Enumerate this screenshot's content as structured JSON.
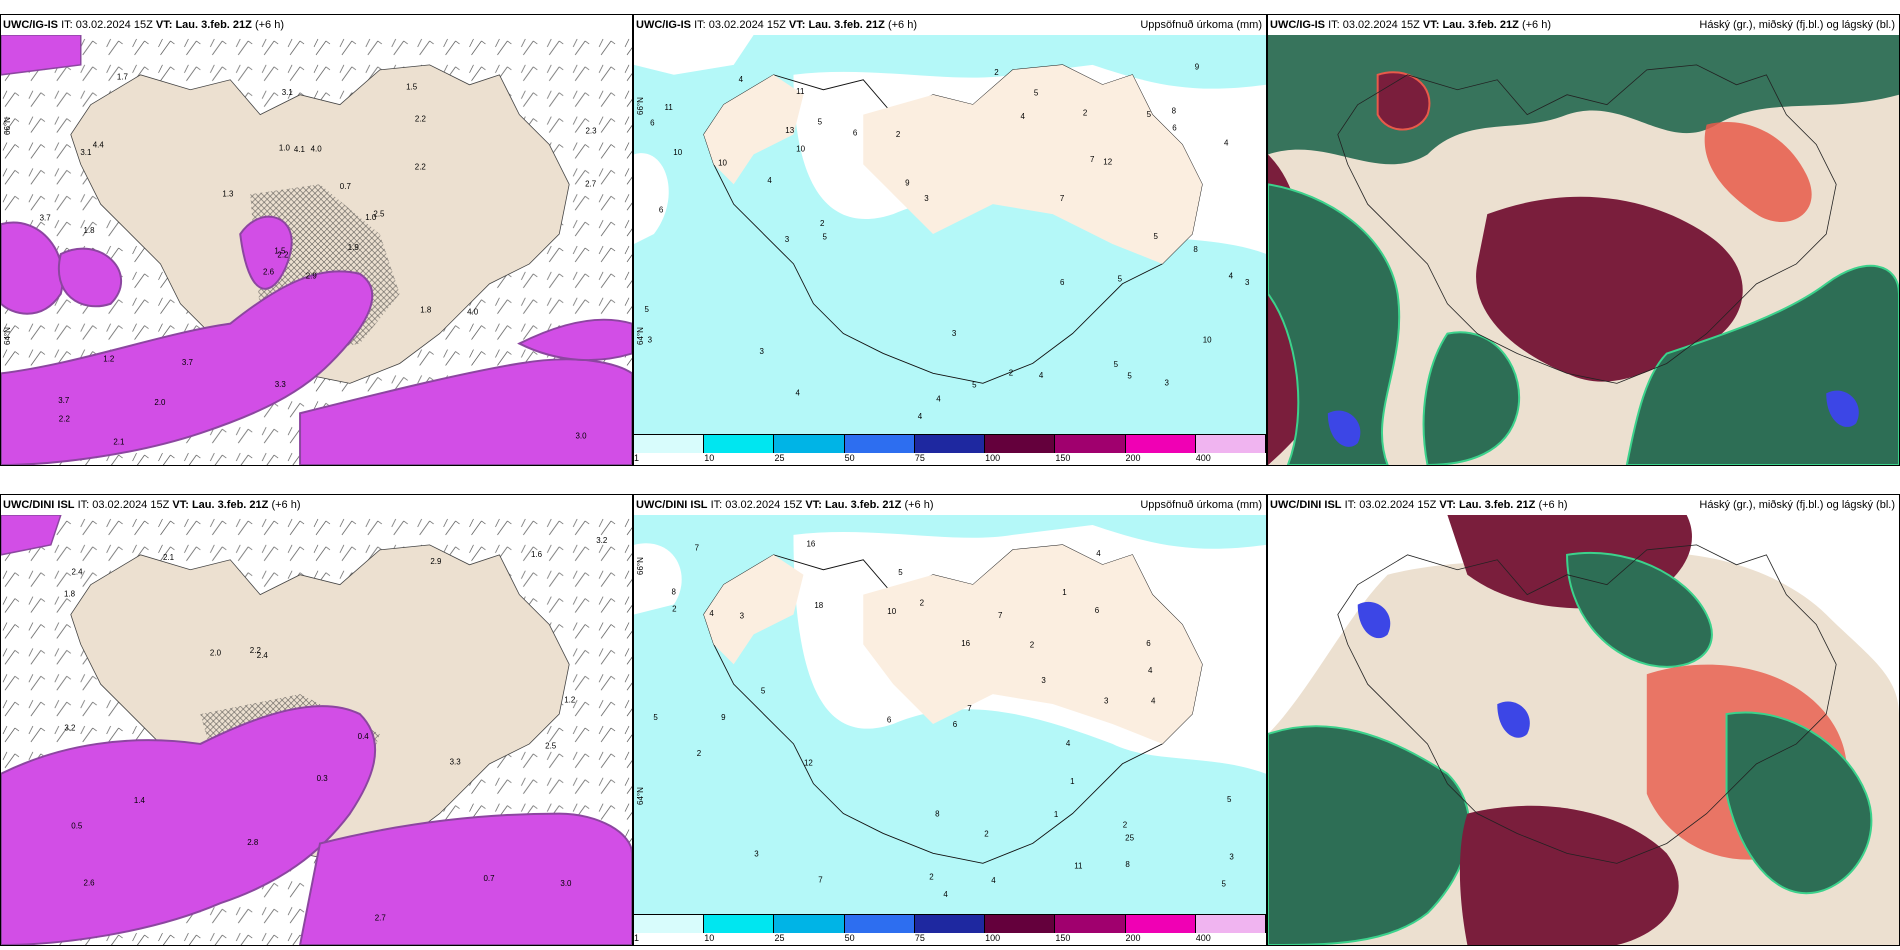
{
  "rows": [
    {
      "model": "UWC/IG-IS",
      "it_label": "IT:",
      "it_value": "03.02.2024 15Z",
      "vt_label": "VT:",
      "vt_value": "Lau. 3.feb. 21Z",
      "lead": "(+6 h)"
    },
    {
      "model": "UWC/DINI ISL",
      "it_label": "IT:",
      "it_value": "03.02.2024 15Z",
      "vt_label": "VT:",
      "vt_value": "Lau. 3.feb. 21Z",
      "lead": "(+6 h)"
    }
  ],
  "precip_title": "Uppsöfnuð úrkoma (mm)",
  "cloud_title": "Háský (gr.), miðský (fj.bl.) og lágský (bl.)",
  "lat_label_top": "66°N",
  "lat_label_bottom": "64°N",
  "colorbar": {
    "ticks": [
      "1",
      "10",
      "25",
      "50",
      "75",
      "100",
      "150",
      "200",
      "400"
    ],
    "colors": [
      "#d8fcfc",
      "#00e6f0",
      "#00b4e6",
      "#2d6ef0",
      "#1e28a0",
      "#64003c",
      "#a0006e",
      "#f000b4",
      "#f0b4f0"
    ]
  },
  "map_colors": {
    "land": "#ece0d0",
    "precip_light": "#b4f8f8",
    "rain_purple": "#d24ee6",
    "rain_dark": "#8c46a0",
    "cloud_green": "#2d6e55",
    "cloud_maroon": "#7a1e3c",
    "cloud_red": "#e85a4a",
    "cloud_blue": "#3c46e6"
  },
  "panel1_labels": {
    "top": [
      "2.9",
      "3.1",
      "2.2",
      "3.7",
      "1.0",
      "3.7",
      "1.5",
      "4.0",
      "2.2",
      "1.9",
      "1.7",
      "3.0",
      "1.8",
      "2.3",
      "2.6",
      "2.2",
      "2.1",
      "1.0",
      "0.7",
      "1.2",
      "1.3",
      "2.2",
      "2.0",
      "4.1",
      "2.5",
      "4.0",
      "4.4",
      "3.1",
      "3.7",
      "1.8",
      "2.7",
      "1.5",
      "3.3"
    ],
    "bottom": [
      "3.3",
      "2.5",
      "2.6",
      "2.1",
      "2.4",
      "0.7",
      "0.5",
      "2.9",
      "2.0",
      "2.7",
      "1.8",
      "3.2",
      "2.4",
      "3.0",
      "2.8",
      "1.2",
      "0.3",
      "0.4",
      "2.2",
      "1.4",
      "3.2",
      "1.6"
    ]
  },
  "panel2_labels": {
    "top": [
      "10",
      "10",
      "7",
      "4",
      "5",
      "4",
      "6",
      "5",
      "8",
      "3",
      "4",
      "5",
      "7",
      "3",
      "6",
      "4",
      "2",
      "2",
      "3",
      "2",
      "5",
      "8",
      "3",
      "3",
      "2",
      "4",
      "6",
      "5",
      "4",
      "3",
      "5",
      "4",
      "9",
      "10",
      "11",
      "11",
      "6",
      "4",
      "2",
      "3",
      "12",
      "13",
      "9",
      "5",
      "5",
      "4",
      "6",
      "5",
      "10",
      "5"
    ],
    "bottom": [
      "16",
      "25",
      "8",
      "6",
      "2",
      "2",
      "4",
      "1",
      "5",
      "2",
      "2",
      "7",
      "4",
      "4",
      "3",
      "6",
      "5",
      "1",
      "2",
      "1",
      "2",
      "8",
      "3",
      "6",
      "4",
      "3",
      "7",
      "5",
      "7",
      "5",
      "3",
      "9",
      "4",
      "4",
      "12",
      "10",
      "16",
      "18",
      "11",
      "8",
      "6",
      "5",
      "3",
      "7",
      "2",
      "4"
    ]
  }
}
